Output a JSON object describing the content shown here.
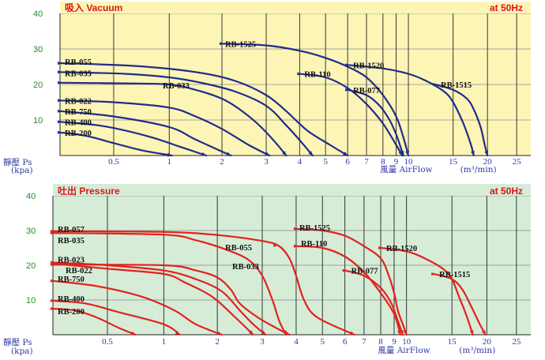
{
  "chart_data": [
    {
      "type": "line",
      "title": "吸入 Vacuum",
      "frequency": "at 50Hz",
      "ylabel": "靜壓 Ps",
      "yunit": "(kpa)",
      "xlabel": "風量 AirFlow",
      "xunit": "(m³/min)",
      "ylim": [
        0,
        40
      ],
      "yticks": [
        "10",
        "20",
        "30",
        "40"
      ],
      "xticks": [
        "0.5",
        "1",
        "2",
        "3",
        "4",
        "5",
        "6",
        "7",
        "8",
        "9",
        "10",
        "15",
        "20",
        "25"
      ],
      "x_scale": "nonlinear",
      "plot_color": "#fdf5b6",
      "line_color": "#1f2c8c",
      "series": [
        {
          "name": "RB-055",
          "points": [
            [
              0,
              26
            ],
            [
              0.7,
              25.2
            ],
            [
              1.5,
              23.5
            ],
            [
              2.3,
              21
            ],
            [
              3,
              17
            ],
            [
              3.6,
              12.5
            ],
            [
              4.3,
              7
            ],
            [
              5.2,
              3
            ],
            [
              6,
              0
            ]
          ]
        },
        {
          "name": "RB-035",
          "points": [
            [
              0,
              23.5
            ],
            [
              0.6,
              23
            ],
            [
              1,
              22
            ],
            [
              1.6,
              20.5
            ],
            [
              2.3,
              18
            ],
            [
              3,
              14
            ],
            [
              3.6,
              8.5
            ],
            [
              4.1,
              3.5
            ],
            [
              4.5,
              0
            ]
          ]
        },
        {
          "name": "RB-033",
          "points": [
            [
              0,
              20.5
            ],
            [
              0.6,
              20.3
            ],
            [
              1,
              20
            ],
            [
              1.5,
              18.5
            ],
            [
              2,
              16
            ],
            [
              2.4,
              13
            ],
            [
              2.8,
              9
            ],
            [
              3.2,
              4.5
            ],
            [
              3.6,
              0
            ]
          ]
        },
        {
          "name": "RB-022",
          "points": [
            [
              0,
              15.5
            ],
            [
              0.5,
              15
            ],
            [
              1,
              13.5
            ],
            [
              1.5,
              11
            ],
            [
              2,
              7.5
            ],
            [
              2.6,
              3
            ],
            [
              3.1,
              0
            ]
          ]
        },
        {
          "name": "RB-750",
          "points": [
            [
              0,
              12.5
            ],
            [
              0.5,
              11
            ],
            [
              1,
              8
            ],
            [
              1.5,
              4.5
            ],
            [
              2.2,
              0
            ]
          ]
        },
        {
          "name": "RB-400",
          "points": [
            [
              0,
              9.5
            ],
            [
              0.4,
              8.3
            ],
            [
              0.8,
              5.5
            ],
            [
              1.2,
              2.5
            ],
            [
              1.7,
              0
            ]
          ]
        },
        {
          "name": "RB-200",
          "points": [
            [
              0,
              6.5
            ],
            [
              0.25,
              5.5
            ],
            [
              0.5,
              3.5
            ],
            [
              0.75,
              1.5
            ],
            [
              1.05,
              0
            ]
          ]
        },
        {
          "name": "RB-1525",
          "points": [
            [
              2,
              31.5
            ],
            [
              3,
              31
            ],
            [
              4,
              29.5
            ],
            [
              5,
              27.5
            ],
            [
              6,
              25
            ],
            [
              7,
              22
            ],
            [
              8,
              17
            ],
            [
              9,
              11
            ],
            [
              9.6,
              5
            ],
            [
              10,
              0
            ]
          ]
        },
        {
          "name": "RB-1520",
          "points": [
            [
              6,
              25.5
            ],
            [
              8,
              24.5
            ],
            [
              10,
              23
            ],
            [
              12,
              21
            ],
            [
              14,
              18
            ],
            [
              15,
              15
            ],
            [
              16.5,
              9
            ],
            [
              17.6,
              3
            ],
            [
              18,
              0
            ]
          ]
        },
        {
          "name": "RB-1515",
          "points": [
            [
              13,
              20
            ],
            [
              15,
              18.5
            ],
            [
              17,
              16
            ],
            [
              18,
              13
            ],
            [
              19,
              8
            ],
            [
              19.6,
              3
            ],
            [
              20,
              0
            ]
          ]
        },
        {
          "name": "RB-110",
          "points": [
            [
              4,
              23
            ],
            [
              5,
              22
            ],
            [
              6,
              19
            ],
            [
              7,
              14.5
            ],
            [
              8,
              9
            ],
            [
              9,
              3
            ],
            [
              9.5,
              0
            ]
          ]
        },
        {
          "name": "RB-077",
          "points": [
            [
              6,
              18.5
            ],
            [
              7,
              17
            ],
            [
              7.8,
              14
            ],
            [
              8.5,
              10
            ],
            [
              9,
              6
            ],
            [
              9.4,
              2
            ],
            [
              9.6,
              0
            ]
          ]
        }
      ]
    },
    {
      "type": "line",
      "title": "吐出 Pressure",
      "frequency": "at 50Hz",
      "ylabel": "靜壓 Ps",
      "yunit": "(kpa)",
      "xlabel": "風量 AirFlow",
      "xunit": "(m³/min)",
      "ylim": [
        0,
        40
      ],
      "yticks": [
        "10",
        "20",
        "30",
        "40"
      ],
      "xticks": [
        "0.5",
        "1",
        "2",
        "3",
        "4",
        "5",
        "6",
        "7",
        "8",
        "9",
        "10",
        "15",
        "20",
        "25"
      ],
      "x_scale": "nonlinear",
      "plot_color": "#d6ecd7",
      "line_color": "#e0231d",
      "series": [
        {
          "name": "RB-057",
          "points": [
            [
              0,
              29.8
            ],
            [
              1,
              29.6
            ],
            [
              2,
              28.7
            ],
            [
              3,
              27
            ],
            [
              3.5,
              25.5
            ],
            [
              3.8,
              22
            ],
            [
              4,
              17
            ],
            [
              4.3,
              10
            ],
            [
              4.8,
              5
            ],
            [
              6.5,
              0
            ]
          ]
        },
        {
          "name": "RB-035",
          "points": [
            [
              0,
              29.3
            ],
            [
              1,
              28.8
            ],
            [
              1.6,
              27.2
            ],
            [
              2.2,
              24.5
            ],
            [
              2.7,
              21.5
            ],
            [
              3,
              17
            ],
            [
              3.3,
              10
            ],
            [
              3.5,
              4
            ],
            [
              3.7,
              0
            ]
          ]
        },
        {
          "name": "RB-055",
          "points": [
            [
              3.4,
              25.7
            ]
          ]
        },
        {
          "name": "RB-023",
          "points": [
            [
              0,
              20.8
            ],
            [
              0.5,
              20
            ],
            [
              1,
              18.5
            ],
            [
              1.6,
              16
            ],
            [
              2.1,
              12.5
            ],
            [
              2.5,
              7
            ],
            [
              2.8,
              3
            ],
            [
              3.1,
              0
            ]
          ]
        },
        {
          "name": "RB-033",
          "points": [
            [
              0,
              20.2
            ],
            [
              1,
              20
            ],
            [
              1.6,
              18.5
            ],
            [
              2,
              16.5
            ],
            [
              2.3,
              13
            ],
            [
              2.5,
              9
            ],
            [
              2.9,
              5
            ],
            [
              3.4,
              2
            ],
            [
              3.8,
              0
            ]
          ]
        },
        {
          "name": "RB-022",
          "points": [
            [
              0,
              20.5
            ],
            [
              0.5,
              19
            ],
            [
              1,
              17.5
            ],
            [
              1.4,
              15
            ],
            [
              1.9,
              11
            ],
            [
              2.4,
              5
            ],
            [
              2.8,
              0
            ]
          ]
        },
        {
          "name": "RB-750",
          "points": [
            [
              0,
              15.5
            ],
            [
              0.4,
              14
            ],
            [
              0.8,
              11
            ],
            [
              1.2,
              7
            ],
            [
              1.6,
              3
            ],
            [
              2.1,
              0
            ]
          ]
        },
        {
          "name": "RB-400",
          "points": [
            [
              0,
              9.8
            ],
            [
              0.3,
              9
            ],
            [
              0.6,
              6.5
            ],
            [
              1,
              3
            ],
            [
              1.3,
              0
            ]
          ]
        },
        {
          "name": "RB-200",
          "points": [
            [
              0,
              7.5
            ],
            [
              0.2,
              7
            ],
            [
              0.4,
              5
            ],
            [
              0.6,
              2
            ],
            [
              0.75,
              0
            ]
          ]
        },
        {
          "name": "RB-1525",
          "points": [
            [
              4,
              30.5
            ],
            [
              5,
              30
            ],
            [
              6,
              28.5
            ],
            [
              7,
              25.5
            ],
            [
              8,
              22
            ],
            [
              8.6,
              17
            ],
            [
              9,
              12
            ],
            [
              9.3,
              7
            ],
            [
              9.7,
              3
            ],
            [
              10,
              0
            ]
          ]
        },
        {
          "name": "RB-1520",
          "points": [
            [
              8,
              25
            ],
            [
              10,
              24
            ],
            [
              12,
              22
            ],
            [
              14,
              19
            ],
            [
              15,
              16
            ],
            [
              16,
              11
            ],
            [
              17,
              6
            ],
            [
              18,
              0
            ]
          ]
        },
        {
          "name": "RB-1515",
          "points": [
            [
              13,
              17.5
            ],
            [
              15,
              16
            ],
            [
              16.5,
              13
            ],
            [
              17.8,
              8
            ],
            [
              19,
              3
            ],
            [
              19.8,
              0
            ]
          ]
        },
        {
          "name": "RB-110",
          "points": [
            [
              4,
              25.5
            ],
            [
              5,
              25
            ],
            [
              6,
              22.5
            ],
            [
              7,
              18
            ],
            [
              8,
              12
            ],
            [
              9,
              6
            ],
            [
              9.5,
              0
            ]
          ]
        },
        {
          "name": "RB-077",
          "points": [
            [
              6,
              18.5
            ],
            [
              7,
              17
            ],
            [
              8,
              13.5
            ],
            [
              8.8,
              9
            ],
            [
              9.3,
              4
            ],
            [
              9.7,
              0
            ]
          ]
        }
      ]
    }
  ]
}
